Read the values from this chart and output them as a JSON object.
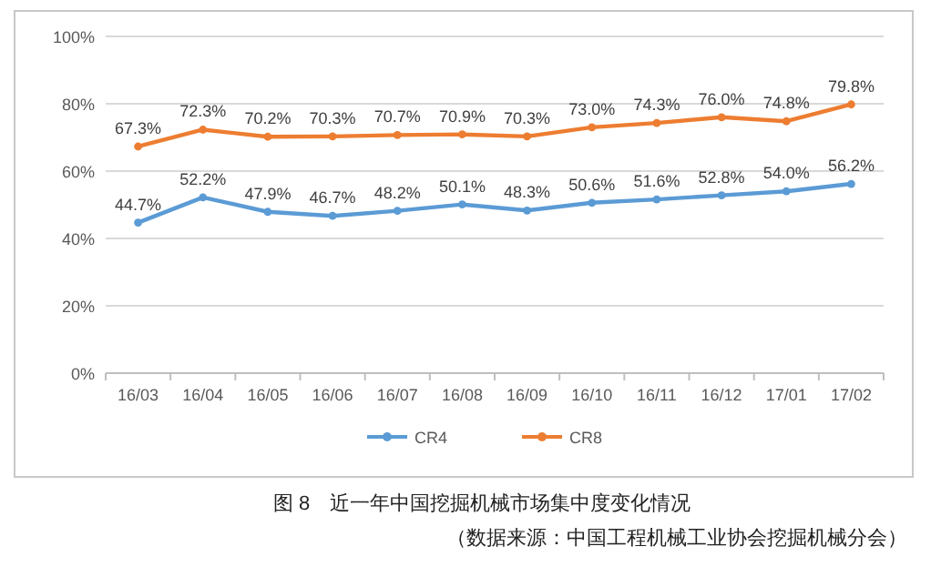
{
  "chart_data": {
    "type": "line",
    "title": "图 8　近一年中国挖掘机械市场集中度变化情况",
    "annotations": [
      "（数据来源：中国工程机械工业协会挖掘机械分会）"
    ],
    "categories": [
      "16/03",
      "16/04",
      "16/05",
      "16/06",
      "16/07",
      "16/08",
      "16/09",
      "16/10",
      "16/11",
      "16/12",
      "17/01",
      "17/02"
    ],
    "series": [
      {
        "name": "CR4",
        "color": "#5b9bd5",
        "values": [
          44.7,
          52.2,
          47.9,
          46.7,
          48.2,
          50.1,
          48.3,
          50.6,
          51.6,
          52.8,
          54.0,
          56.2
        ],
        "value_labels": [
          "44.7%",
          "52.2%",
          "47.9%",
          "46.7%",
          "48.2%",
          "50.1%",
          "48.3%",
          "50.6%",
          "51.6%",
          "52.8%",
          "54.0%",
          "56.2%"
        ]
      },
      {
        "name": "CR8",
        "color": "#ed7d31",
        "values": [
          67.3,
          72.3,
          70.2,
          70.3,
          70.7,
          70.9,
          70.3,
          73.0,
          74.3,
          76.0,
          74.8,
          79.8
        ],
        "value_labels": [
          "67.3%",
          "72.3%",
          "70.2%",
          "70.3%",
          "70.7%",
          "70.9%",
          "70.3%",
          "73.0%",
          "74.3%",
          "76.0%",
          "74.8%",
          "79.8%"
        ]
      }
    ],
    "ylim": [
      0,
      100
    ],
    "yticks": [
      {
        "value": 0,
        "label": "0%"
      },
      {
        "value": 20,
        "label": "20%"
      },
      {
        "value": 40,
        "label": "40%"
      },
      {
        "value": 60,
        "label": "60%"
      },
      {
        "value": 80,
        "label": "80%"
      },
      {
        "value": 100,
        "label": "100%"
      }
    ],
    "grid": "y",
    "legend": "bottom",
    "marker": "circle",
    "line_style": "solid"
  }
}
